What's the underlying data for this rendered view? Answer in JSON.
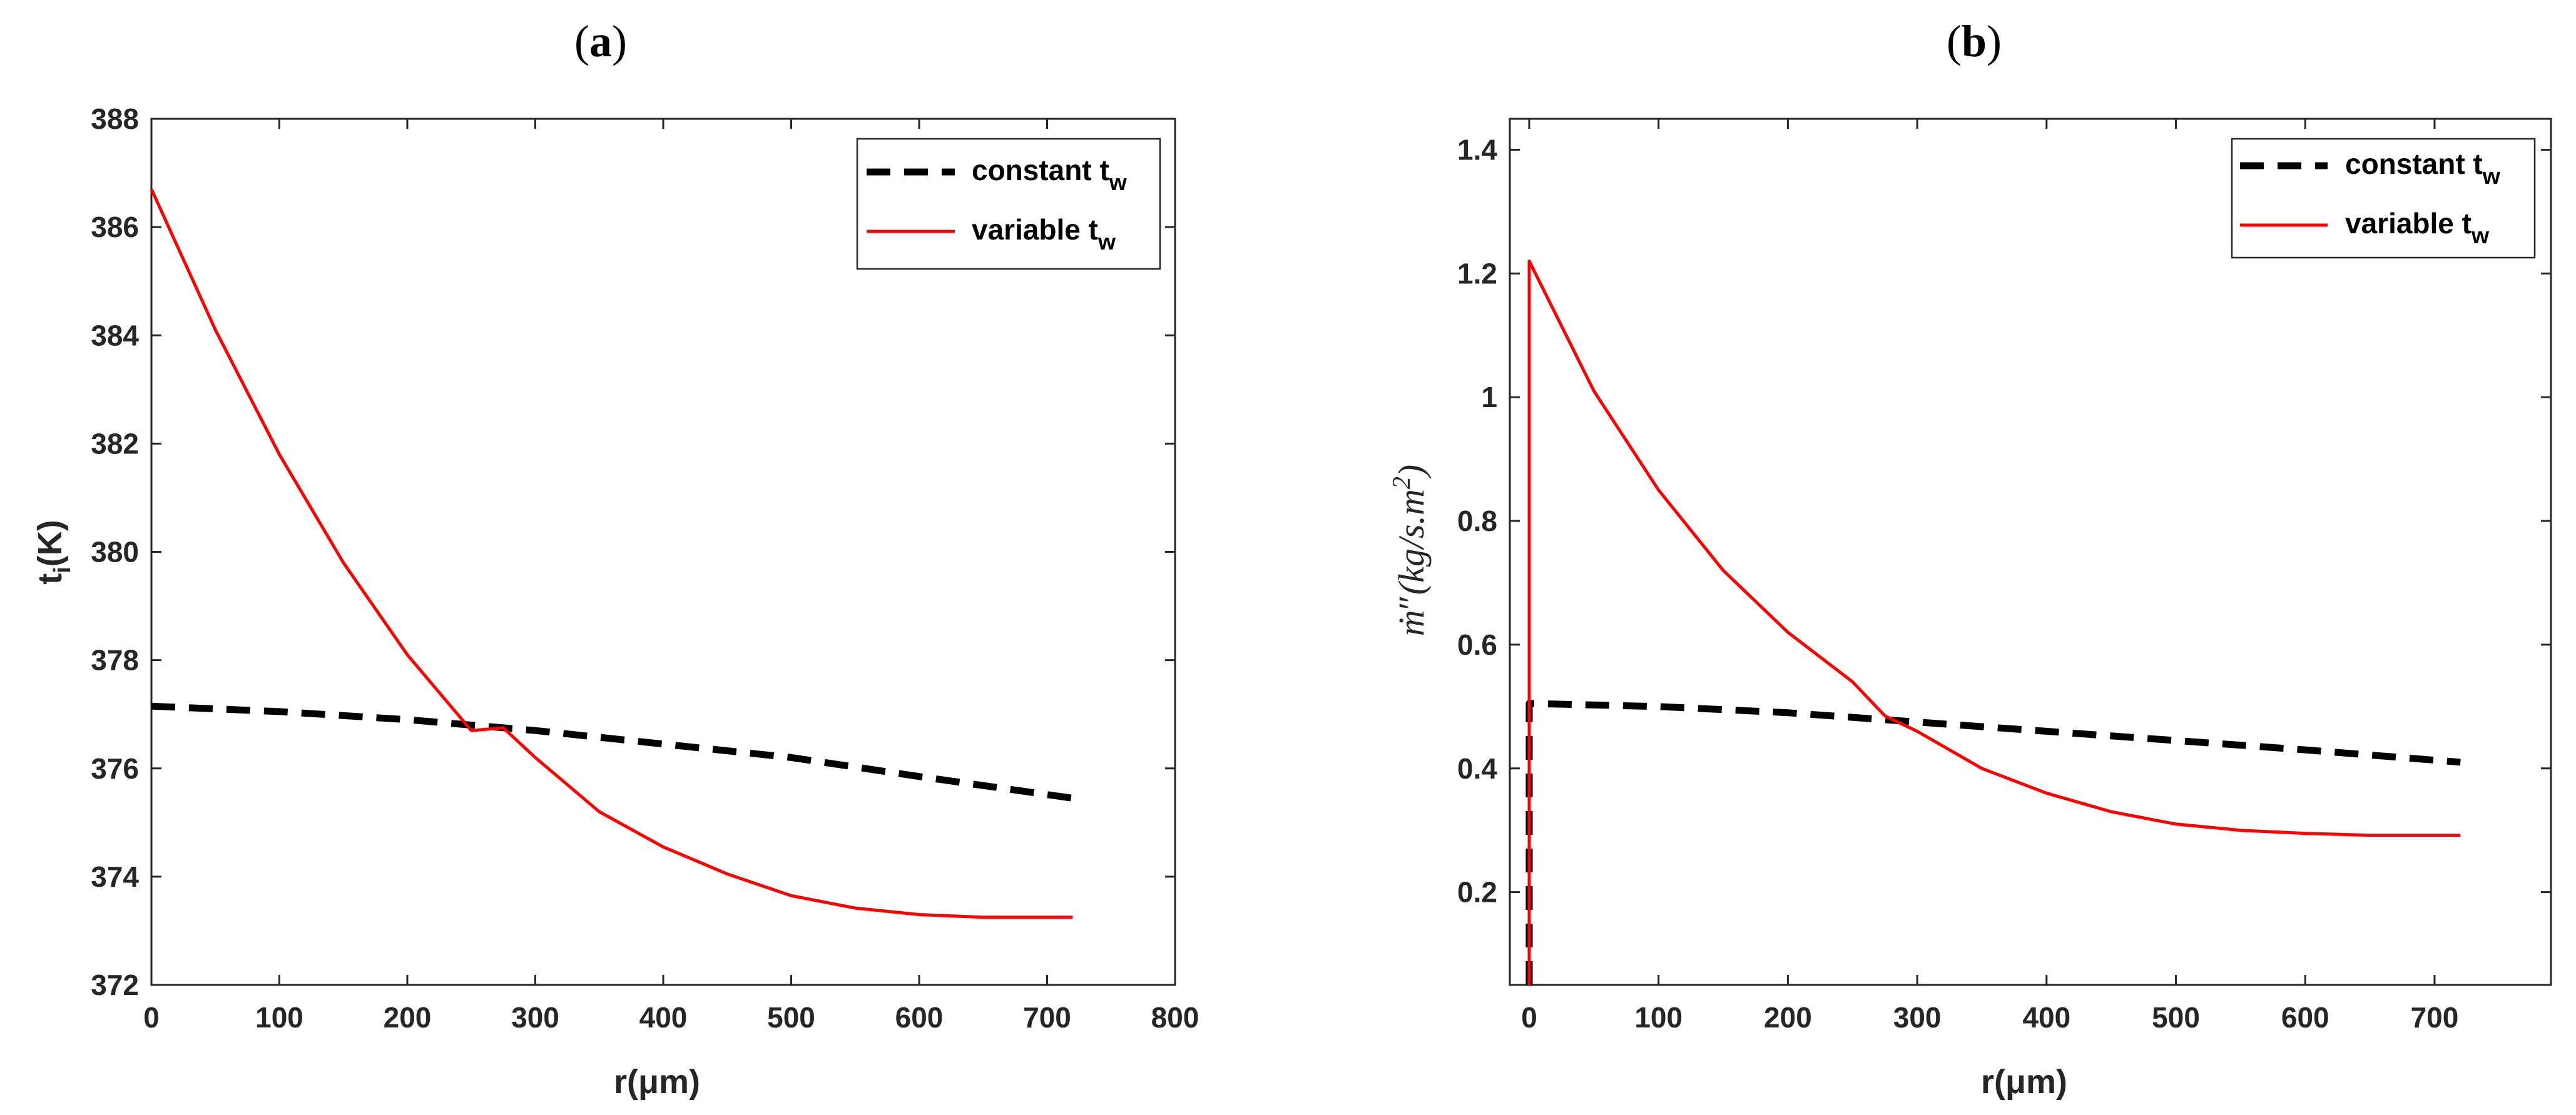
{
  "chart_data": [
    {
      "id": "a",
      "panel_label": "a",
      "type": "line",
      "xlabel_main": "r(μm)",
      "ylabel_main": "t",
      "ylabel_sub": "i",
      "ylabel_tail": "(K)",
      "xlim": [
        0,
        800
      ],
      "ylim": [
        372,
        388
      ],
      "xticks": [
        0,
        100,
        200,
        300,
        400,
        500,
        600,
        700,
        800
      ],
      "yticks": [
        372,
        374,
        376,
        378,
        380,
        382,
        384,
        386,
        388
      ],
      "legend_position": "top-right",
      "series": [
        {
          "name": "constant t_w",
          "label_main": "constant t",
          "label_sub": "w",
          "color": "#000000",
          "style": "dashed",
          "x": [
            0,
            100,
            200,
            300,
            400,
            500,
            600,
            720
          ],
          "y": [
            377.15,
            377.05,
            376.9,
            376.7,
            376.45,
            376.2,
            375.85,
            375.45
          ]
        },
        {
          "name": "variable t_w",
          "label_main": "variable t",
          "label_sub": "w",
          "color": "#ff0000",
          "style": "solid",
          "x": [
            0,
            50,
            100,
            150,
            200,
            250,
            275,
            300,
            350,
            400,
            450,
            500,
            550,
            600,
            650,
            700,
            720
          ],
          "y": [
            386.7,
            384.1,
            381.8,
            379.8,
            378.1,
            376.7,
            376.75,
            376.2,
            375.2,
            374.55,
            374.05,
            373.65,
            373.42,
            373.3,
            373.25,
            373.25,
            373.25
          ]
        }
      ]
    },
    {
      "id": "b",
      "panel_label": "b",
      "type": "line",
      "xlabel_main": "r(μm)",
      "ylabel_math": "ṁ″(kg/s.m²)",
      "ylabel_dot_m": "ṁ",
      "ylabel_prime": "″",
      "ylabel_units": "(kg/s.m",
      "ylabel_sup": "2",
      "ylabel_close": ")",
      "xlim": [
        -15,
        790
      ],
      "ylim": [
        0.05,
        1.45
      ],
      "xticks": [
        0,
        100,
        200,
        300,
        400,
        500,
        600,
        700
      ],
      "yticks": [
        0.2,
        0.4,
        0.6,
        0.8,
        1,
        1.2,
        1.4
      ],
      "ytick_labels": [
        "0.2",
        "0.4",
        "0.6",
        "0.8",
        "1",
        "1.2",
        "1.4"
      ],
      "legend_position": "top-right",
      "series": [
        {
          "name": "constant t_w",
          "label_main": "constant t",
          "label_sub": "w",
          "color": "#000000",
          "style": "dashed",
          "x": [
            0,
            0,
            100,
            200,
            300,
            400,
            500,
            600,
            720
          ],
          "y": [
            0.05,
            0.505,
            0.5,
            0.49,
            0.475,
            0.46,
            0.445,
            0.43,
            0.41
          ]
        },
        {
          "name": "variable t_w",
          "label_main": "variable t",
          "label_sub": "w",
          "color": "#ff0000",
          "style": "solid",
          "x": [
            0,
            0,
            50,
            100,
            150,
            200,
            250,
            275,
            300,
            350,
            400,
            450,
            500,
            550,
            600,
            650,
            700,
            720
          ],
          "y": [
            0.05,
            1.22,
            1.01,
            0.85,
            0.72,
            0.62,
            0.54,
            0.485,
            0.46,
            0.4,
            0.36,
            0.33,
            0.31,
            0.3,
            0.295,
            0.292,
            0.292,
            0.292
          ]
        }
      ]
    }
  ]
}
